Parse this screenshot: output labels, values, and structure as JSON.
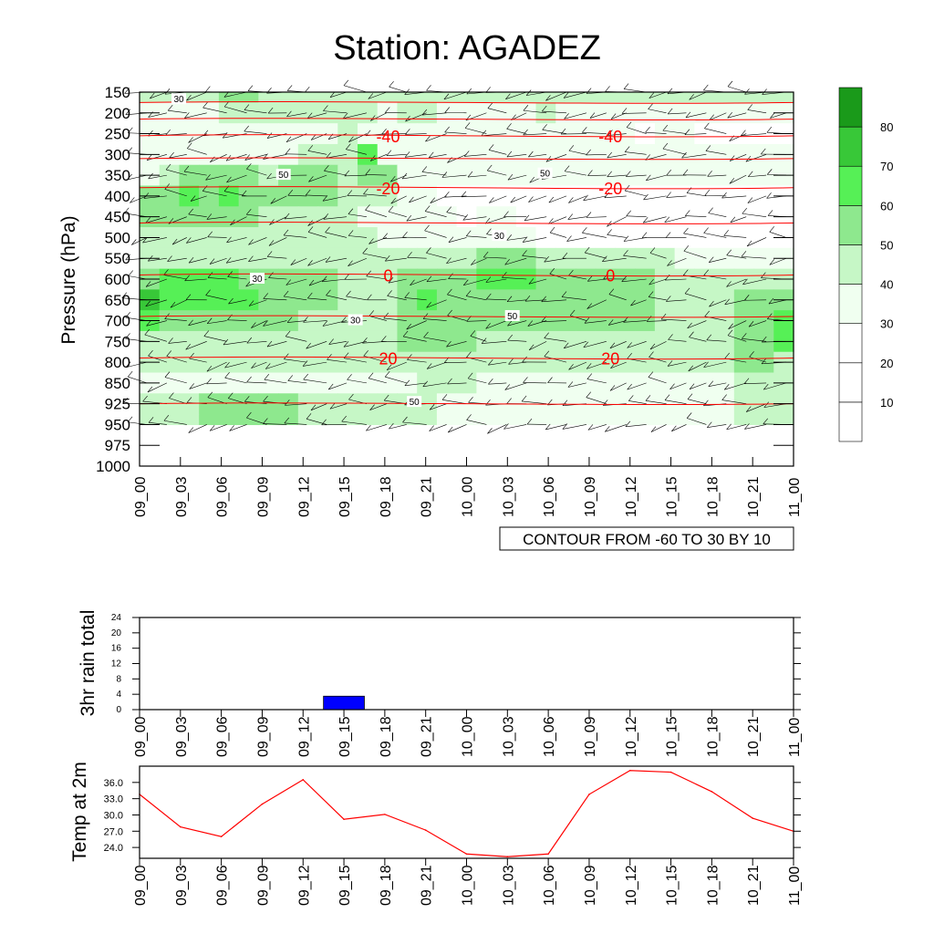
{
  "title": "Station: AGADEZ",
  "colors": {
    "temp_line": "#ff0000",
    "rain_bar": "#0000ff",
    "shade": [
      "#ffffff",
      "#ffffff",
      "#ffffff",
      "#f0fff0",
      "#c6f7c6",
      "#8ee88e",
      "#56f056",
      "#38c838",
      "#1a9a1a"
    ]
  },
  "time_labels": [
    "09_00",
    "09_03",
    "09_06",
    "09_09",
    "09_12",
    "09_15",
    "09_18",
    "09_21",
    "10_00",
    "10_03",
    "10_06",
    "10_09",
    "10_12",
    "10_15",
    "10_18",
    "10_21",
    "11_00"
  ],
  "chart_data": [
    {
      "type": "heatmap",
      "ylabel": "Pressure (hPa)",
      "pressure_levels": [
        "150",
        "200",
        "250",
        "300",
        "350",
        "400",
        "450",
        "500",
        "550",
        "600",
        "650",
        "700",
        "750",
        "800",
        "850",
        "925",
        "950",
        "975",
        "1000"
      ],
      "ylim": [
        1000,
        150
      ],
      "contour_note": "CONTOUR FROM -60 TO 30 BY 10",
      "colorbar": {
        "ticks": [
          "10",
          "20",
          "30",
          "40",
          "50",
          "60",
          "70",
          "80"
        ]
      },
      "shaded_field_levels": [
        150,
        200,
        250,
        300,
        350,
        400,
        450,
        500,
        550,
        600,
        650,
        700,
        750,
        800,
        850,
        925,
        950
      ],
      "shaded_field_values": [
        [
          45,
          45,
          40,
          40,
          55,
          50,
          45,
          40,
          45,
          45,
          42,
          40,
          40,
          42,
          42,
          45,
          45,
          40,
          45,
          40,
          40,
          45,
          45,
          45,
          42,
          40,
          40,
          40,
          40,
          42,
          45,
          42,
          40
        ],
        [
          35,
          35,
          35,
          35,
          40,
          40,
          40,
          40,
          40,
          40,
          40,
          40,
          35,
          40,
          40,
          35,
          35,
          35,
          35,
          38,
          40,
          38,
          38,
          38,
          35,
          35,
          35,
          35,
          35,
          35,
          35,
          35,
          35
        ],
        [
          32,
          32,
          32,
          32,
          32,
          32,
          30,
          32,
          35,
          30,
          40,
          30,
          30,
          30,
          32,
          35,
          38,
          30,
          30,
          30,
          30,
          35,
          35,
          35,
          30,
          28,
          35,
          30,
          28,
          28,
          28,
          28,
          28
        ],
        [
          32,
          32,
          32,
          32,
          32,
          32,
          34,
          35,
          40,
          40,
          40,
          60,
          35,
          30,
          30,
          30,
          30,
          30,
          30,
          30,
          30,
          30,
          30,
          30,
          30,
          30,
          30,
          30,
          30,
          30,
          30,
          30,
          30
        ],
        [
          38,
          48,
          55,
          52,
          52,
          50,
          48,
          50,
          52,
          50,
          45,
          55,
          55,
          35,
          30,
          30,
          30,
          30,
          30,
          30,
          30,
          30,
          30,
          30,
          30,
          30,
          30,
          30,
          30,
          30,
          30,
          30,
          30
        ],
        [
          55,
          58,
          60,
          58,
          62,
          58,
          52,
          52,
          52,
          50,
          45,
          45,
          45,
          38,
          30,
          25,
          25,
          25,
          25,
          25,
          25,
          25,
          25,
          25,
          25,
          25,
          25,
          25,
          25,
          25,
          25,
          25,
          25
        ],
        [
          55,
          52,
          52,
          52,
          50,
          50,
          45,
          45,
          45,
          42,
          40,
          38,
          35,
          35,
          32,
          30,
          28,
          30,
          30,
          25,
          25,
          25,
          25,
          25,
          25,
          25,
          25,
          25,
          25,
          25,
          25,
          25,
          25
        ],
        [
          48,
          45,
          45,
          45,
          45,
          45,
          45,
          45,
          45,
          42,
          40,
          40,
          35,
          32,
          30,
          30,
          30,
          30,
          30,
          30,
          28,
          28,
          25,
          25,
          25,
          25,
          25,
          25,
          25,
          25,
          25,
          25,
          25
        ],
        [
          45,
          45,
          45,
          45,
          45,
          45,
          45,
          45,
          45,
          45,
          45,
          40,
          40,
          40,
          40,
          40,
          45,
          50,
          50,
          50,
          45,
          45,
          45,
          45,
          45,
          45,
          40,
          35,
          35,
          35,
          35,
          35,
          35
        ],
        [
          55,
          60,
          60,
          60,
          60,
          58,
          55,
          55,
          50,
          50,
          45,
          45,
          45,
          52,
          55,
          55,
          55,
          60,
          60,
          60,
          58,
          56,
          55,
          54,
          52,
          50,
          48,
          45,
          40,
          40,
          40,
          40,
          40
        ],
        [
          75,
          62,
          62,
          62,
          62,
          60,
          55,
          50,
          50,
          50,
          45,
          45,
          45,
          55,
          60,
          58,
          58,
          58,
          58,
          58,
          58,
          56,
          55,
          52,
          50,
          50,
          40,
          40,
          40,
          45,
          50,
          55,
          58
        ],
        [
          60,
          55,
          55,
          55,
          55,
          55,
          50,
          50,
          45,
          45,
          45,
          45,
          45,
          55,
          58,
          58,
          55,
          55,
          55,
          52,
          52,
          52,
          52,
          50,
          50,
          50,
          40,
          40,
          40,
          45,
          52,
          58,
          60
        ],
        [
          45,
          45,
          45,
          45,
          45,
          45,
          45,
          45,
          45,
          45,
          45,
          45,
          45,
          50,
          55,
          55,
          50,
          45,
          45,
          45,
          45,
          45,
          45,
          45,
          45,
          45,
          40,
          40,
          40,
          45,
          52,
          58,
          60
        ],
        [
          42,
          42,
          42,
          42,
          42,
          42,
          42,
          42,
          42,
          42,
          42,
          42,
          42,
          42,
          45,
          45,
          45,
          42,
          42,
          42,
          42,
          42,
          42,
          42,
          42,
          42,
          42,
          42,
          40,
          45,
          50,
          50,
          48
        ],
        [
          35,
          35,
          35,
          35,
          35,
          35,
          35,
          35,
          35,
          35,
          35,
          35,
          35,
          35,
          40,
          40,
          40,
          38,
          38,
          38,
          38,
          38,
          38,
          38,
          38,
          38,
          38,
          38,
          38,
          38,
          40,
          40,
          40
        ],
        [
          45,
          45,
          45,
          50,
          52,
          52,
          52,
          50,
          45,
          45,
          42,
          42,
          40,
          40,
          40,
          35,
          38,
          38,
          38,
          38,
          38,
          38,
          38,
          38,
          38,
          38,
          38,
          38,
          38,
          38,
          40,
          40,
          40
        ],
        [
          45,
          45,
          45,
          50,
          55,
          55,
          55,
          50,
          45,
          45,
          42,
          42,
          40,
          40,
          40,
          35,
          38,
          38,
          38,
          38,
          38,
          38,
          38,
          38,
          38,
          38,
          38,
          38,
          38,
          38,
          40,
          40,
          40
        ]
      ],
      "temperature_contours": [
        {
          "label": "-40",
          "pressure": 255
        },
        {
          "label": "-20",
          "pressure": 380
        },
        {
          "label": "0",
          "pressure": 590
        },
        {
          "label": "20",
          "pressure": 790
        }
      ],
      "contour_labels": [
        "30",
        "50"
      ]
    },
    {
      "type": "bar",
      "ylabel": "3hr rain total",
      "yticks": [
        "0",
        "4",
        "8",
        "12",
        "16",
        "20",
        "24"
      ],
      "ylim": [
        0,
        24
      ],
      "bars": [
        {
          "x_index": 5,
          "value": 3.5
        }
      ]
    },
    {
      "type": "line",
      "ylabel": "Temp at 2m",
      "yticks": [
        "24.0",
        "27.0",
        "30.0",
        "33.0",
        "36.0"
      ],
      "ylim": [
        22.0,
        39.0
      ],
      "values": [
        33.8,
        27.8,
        26.0,
        32.0,
        36.5,
        29.2,
        30.1,
        27.2,
        22.8,
        22.3,
        22.8,
        33.8,
        38.2,
        37.9,
        34.3,
        29.4,
        27.0
      ]
    }
  ]
}
